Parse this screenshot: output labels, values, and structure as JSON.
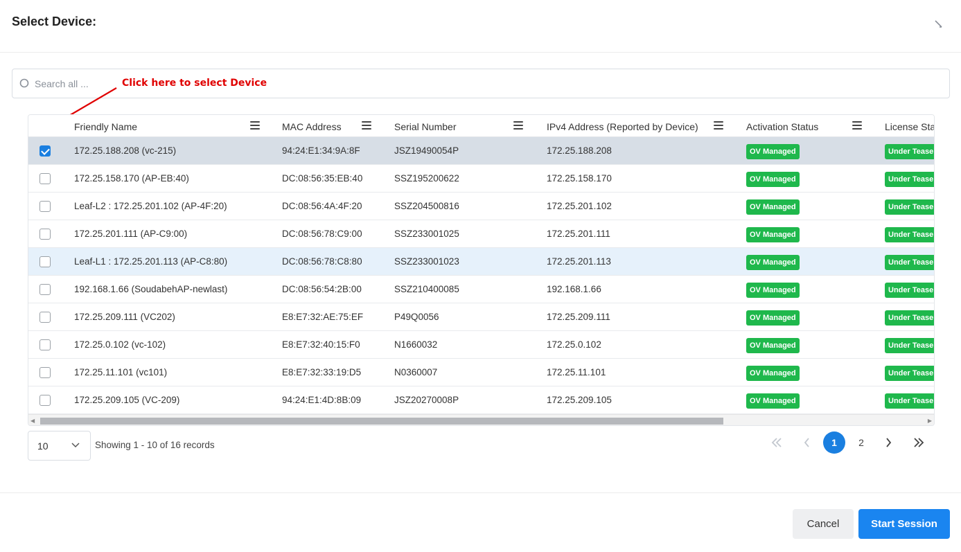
{
  "dialog": {
    "title": "Select Device:",
    "close_icon": "close-icon"
  },
  "search": {
    "placeholder": "Search all ...",
    "value": "",
    "icon": "search-icon"
  },
  "annotation": {
    "text": "Click here to select Device",
    "color": "#e00000"
  },
  "table": {
    "columns": [
      {
        "label": "Friendly Name"
      },
      {
        "label": "MAC Address"
      },
      {
        "label": "Serial Number"
      },
      {
        "label": "IPv4 Address (Reported by Device)"
      },
      {
        "label": "Activation Status"
      },
      {
        "label": "License Stat"
      }
    ],
    "rows": [
      {
        "checked": true,
        "state": "selected",
        "name": "172.25.188.208 (vc-215)",
        "mac": "94:24:E1:34:9A:8F",
        "serial": "JSZ19490054P",
        "ipv4": "172.25.188.208",
        "activation": "OV Managed",
        "license": "Under Teaser"
      },
      {
        "checked": false,
        "state": "",
        "name": "172.25.158.170 (AP-EB:40)",
        "mac": "DC:08:56:35:EB:40",
        "serial": "SSZ195200622",
        "ipv4": "172.25.158.170",
        "activation": "OV Managed",
        "license": "Under Teaser"
      },
      {
        "checked": false,
        "state": "",
        "name": "Leaf-L2 : 172.25.201.102 (AP-4F:20)",
        "mac": "DC:08:56:4A:4F:20",
        "serial": "SSZ204500816",
        "ipv4": "172.25.201.102",
        "activation": "OV Managed",
        "license": "Under Teaser"
      },
      {
        "checked": false,
        "state": "",
        "name": "172.25.201.111 (AP-C9:00)",
        "mac": "DC:08:56:78:C9:00",
        "serial": "SSZ233001025",
        "ipv4": "172.25.201.111",
        "activation": "OV Managed",
        "license": "Under Teaser"
      },
      {
        "checked": false,
        "state": "hover",
        "name": "Leaf-L1 : 172.25.201.113 (AP-C8:80)",
        "mac": "DC:08:56:78:C8:80",
        "serial": "SSZ233001023",
        "ipv4": "172.25.201.113",
        "activation": "OV Managed",
        "license": "Under Teaser"
      },
      {
        "checked": false,
        "state": "",
        "name": "192.168.1.66 (SoudabehAP-newlast)",
        "mac": "DC:08:56:54:2B:00",
        "serial": "SSZ210400085",
        "ipv4": "192.168.1.66",
        "activation": "OV Managed",
        "license": "Under Teaser"
      },
      {
        "checked": false,
        "state": "",
        "name": "172.25.209.111 (VC202)",
        "mac": "E8:E7:32:AE:75:EF",
        "serial": "P49Q0056",
        "ipv4": "172.25.209.111",
        "activation": "OV Managed",
        "license": "Under Teaser"
      },
      {
        "checked": false,
        "state": "",
        "name": "172.25.0.102 (vc-102)",
        "mac": "E8:E7:32:40:15:F0",
        "serial": "N1660032",
        "ipv4": "172.25.0.102",
        "activation": "OV Managed",
        "license": "Under Teaser"
      },
      {
        "checked": false,
        "state": "",
        "name": "172.25.11.101 (vc101)",
        "mac": "E8:E7:32:33:19:D5",
        "serial": "N0360007",
        "ipv4": "172.25.11.101",
        "activation": "OV Managed",
        "license": "Under Teaser"
      },
      {
        "checked": false,
        "state": "",
        "name": "172.25.209.105 (VC-209)",
        "mac": "94:24:E1:4D:8B:09",
        "serial": "JSZ20270008P",
        "ipv4": "172.25.209.105",
        "activation": "OV Managed",
        "license": "Under Teaser"
      }
    ],
    "badge_color": "#1fb84c"
  },
  "pagination": {
    "page_size": "10",
    "records_text": "Showing 1 - 10 of 16 records",
    "pages": [
      "1",
      "2"
    ],
    "current_page": "1",
    "accent": "#1a7fe0"
  },
  "footer": {
    "cancel_label": "Cancel",
    "start_label": "Start Session",
    "start_color": "#1a85f0"
  }
}
